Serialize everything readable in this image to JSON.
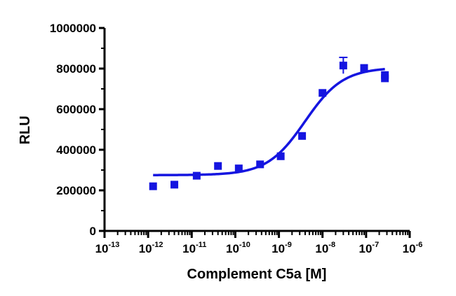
{
  "chart_data": {
    "type": "scatter",
    "xlabel": "Complement C5a [M]",
    "ylabel": "RLU",
    "x_scale": "log",
    "xlim": [
      1e-13,
      1e-06
    ],
    "ylim": [
      0,
      1000000
    ],
    "y_ticks": [
      "0",
      "200000",
      "400000",
      "600000",
      "800000",
      "1000000"
    ],
    "x_ticks": [
      {
        "base": "10",
        "exp": "-13"
      },
      {
        "base": "10",
        "exp": "-12"
      },
      {
        "base": "10",
        "exp": "-11"
      },
      {
        "base": "10",
        "exp": "-10"
      },
      {
        "base": "10",
        "exp": "-9"
      },
      {
        "base": "10",
        "exp": "-8"
      },
      {
        "base": "10",
        "exp": "-7"
      },
      {
        "base": "10",
        "exp": "-6"
      }
    ],
    "color": "#1515e0",
    "series": [
      {
        "points": [
          {
            "x": 1.3e-12,
            "y": 220000
          },
          {
            "x": 4e-12,
            "y": 228000
          },
          {
            "x": 1.3e-11,
            "y": 272000
          },
          {
            "x": 4e-11,
            "y": 320000
          },
          {
            "x": 1.2e-10,
            "y": 308000
          },
          {
            "x": 3.7e-10,
            "y": 328000
          },
          {
            "x": 1.1e-09,
            "y": 368000
          },
          {
            "x": 3.4e-09,
            "y": 468000
          },
          {
            "x": 1e-08,
            "y": 680000
          },
          {
            "x": 3e-08,
            "y": 815000,
            "err": 40000
          },
          {
            "x": 9e-08,
            "y": 803000
          },
          {
            "x": 2.7e-07,
            "y": 768000
          },
          {
            "x": 2.7e-07,
            "y": 752000
          }
        ]
      }
    ],
    "fit": {
      "bottom": 275000,
      "top": 805000,
      "logEC50": -8.4,
      "hill": 1.0,
      "x_from": 1.3e-12,
      "x_to": 2.7e-07
    }
  }
}
